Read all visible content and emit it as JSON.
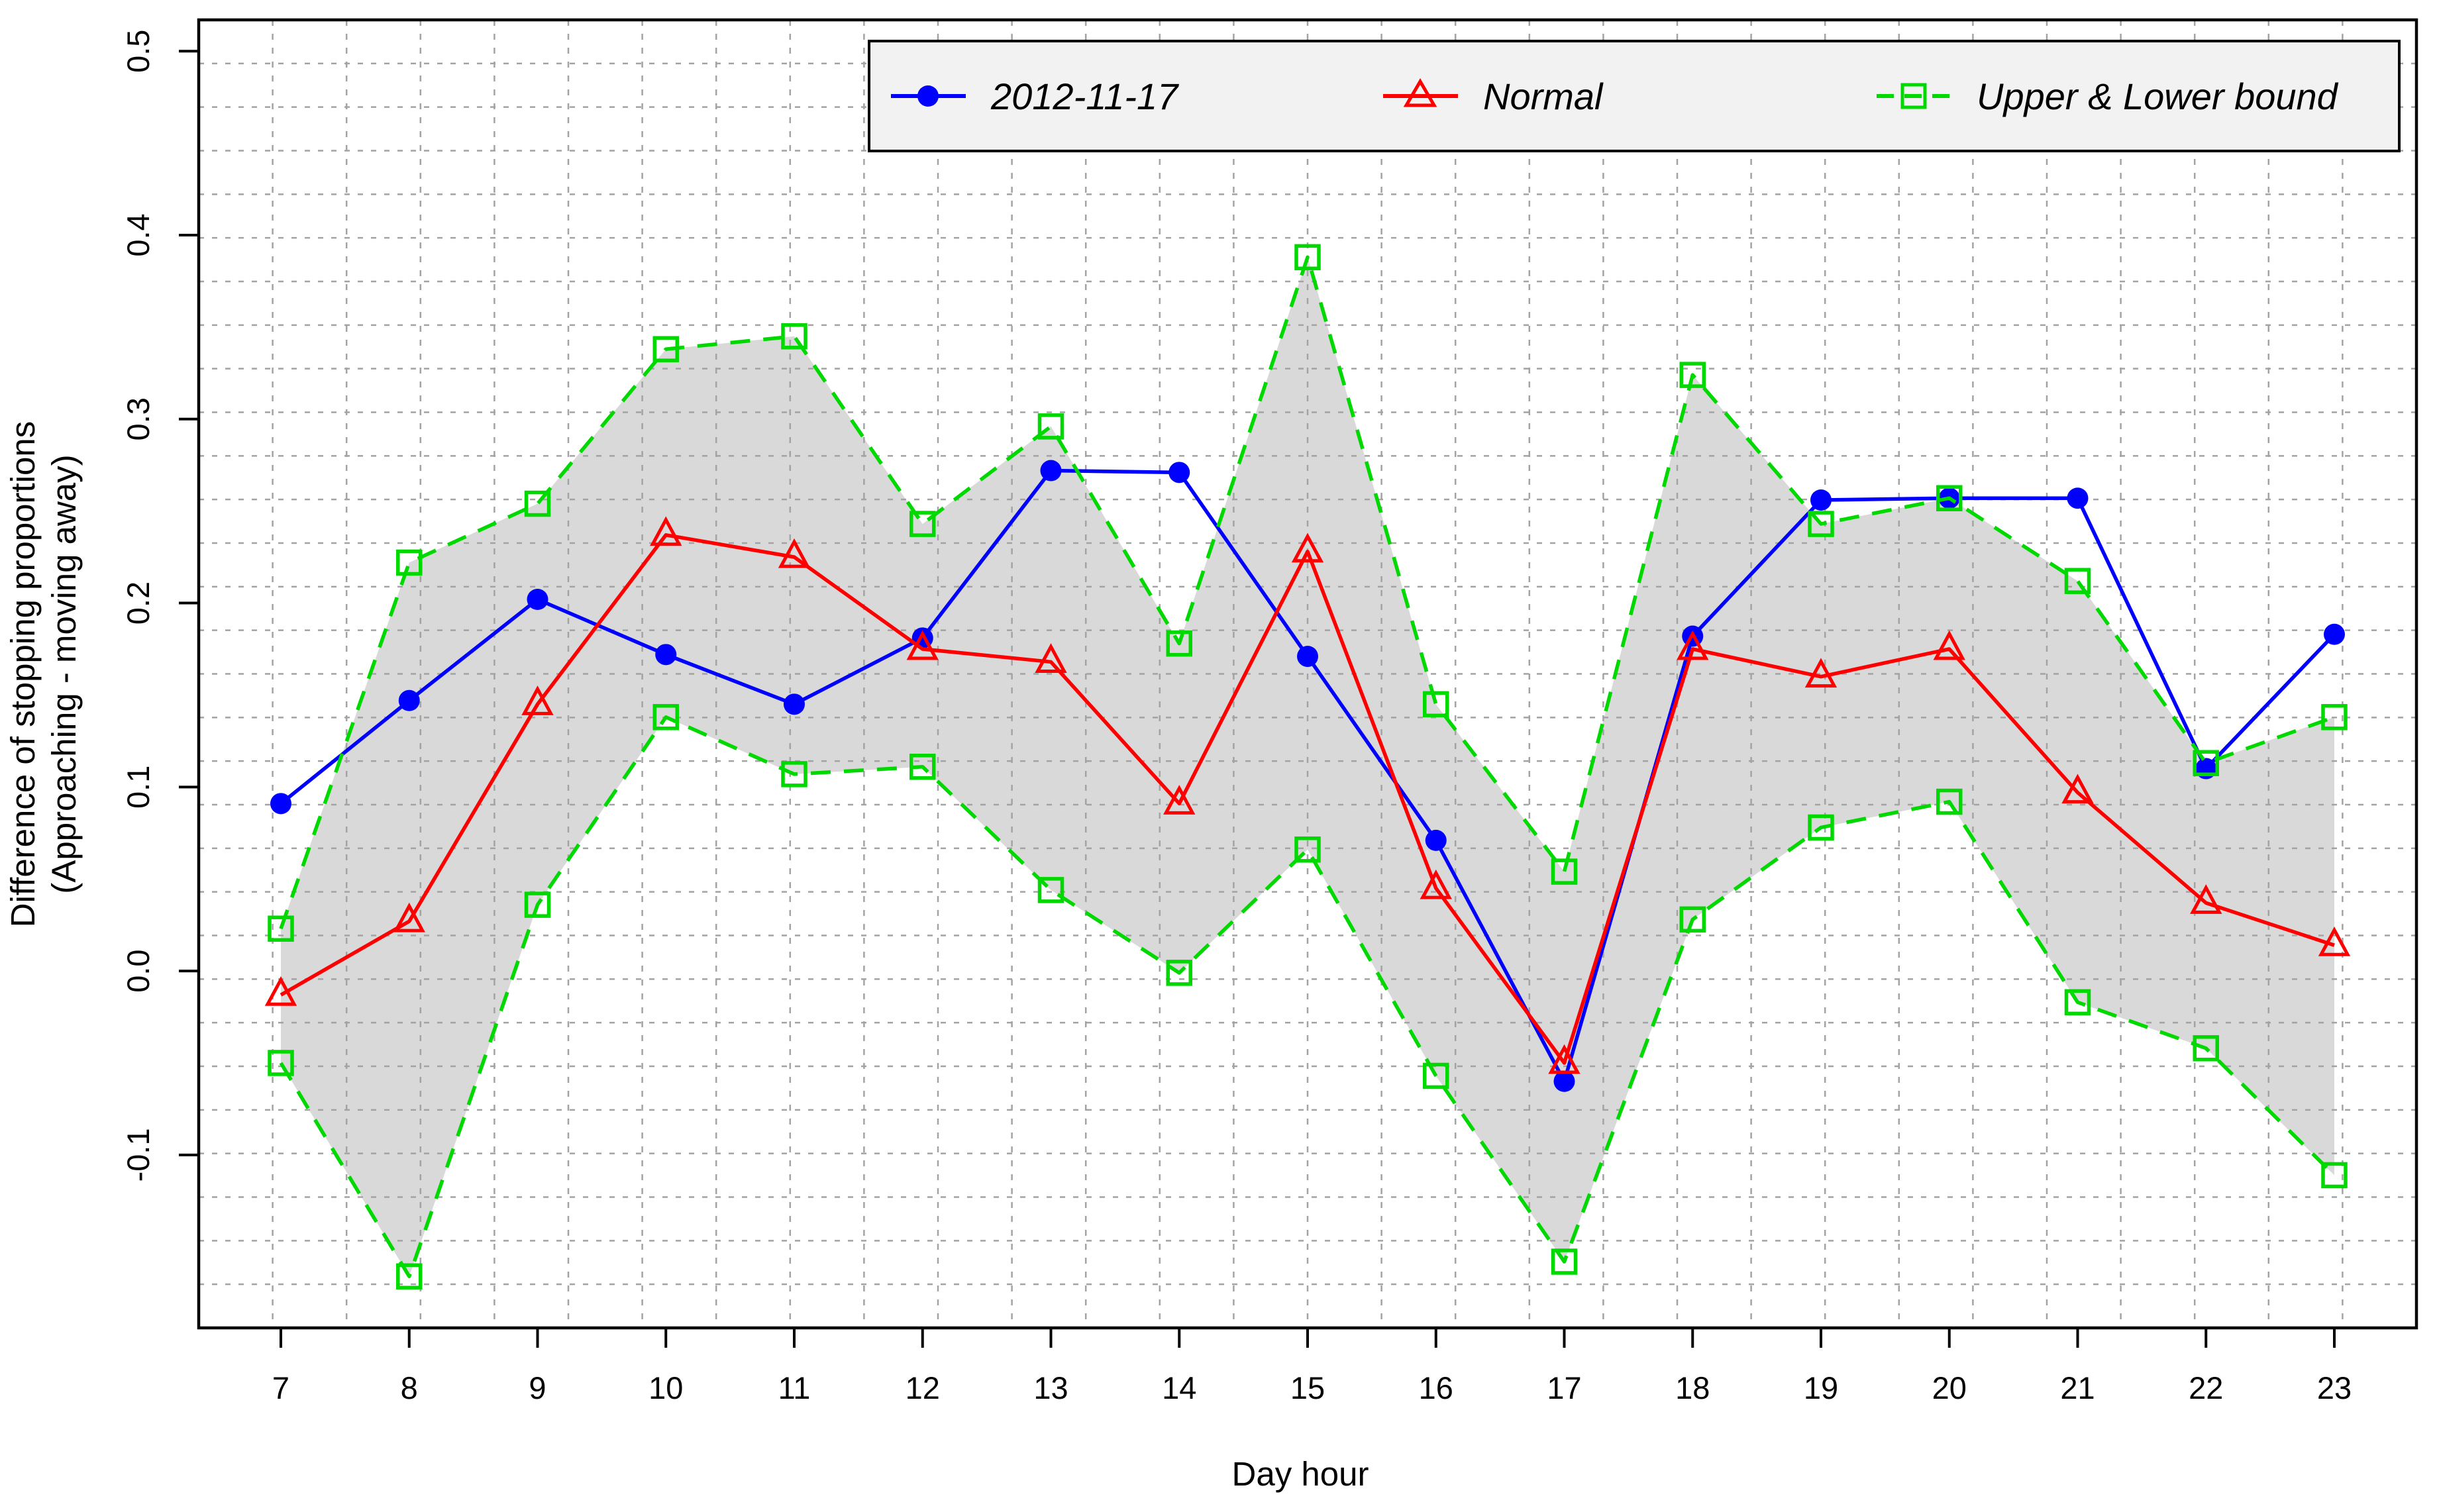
{
  "chart_data": {
    "type": "line",
    "title": "",
    "xlabel": "Day hour",
    "ylabel_line1": "Difference of stopping proportions",
    "ylabel_line2": "(Approaching - moving away)",
    "x": [
      7,
      8,
      9,
      10,
      11,
      12,
      13,
      14,
      15,
      16,
      17,
      18,
      19,
      20,
      21,
      22,
      23
    ],
    "x_tick_labels": [
      "7",
      "8",
      "9",
      "10",
      "11",
      "12",
      "13",
      "14",
      "15",
      "16",
      "17",
      "18",
      "19",
      "20",
      "21",
      "22",
      "23"
    ],
    "y_ticks": [
      -0.1,
      0.0,
      0.1,
      0.2,
      0.3,
      0.4,
      0.5
    ],
    "y_tick_labels": [
      "-0.1",
      "0.0",
      "0.1",
      "0.2",
      "0.3",
      "0.4",
      "0.5"
    ],
    "xlim": [
      6.36,
      23.64
    ],
    "ylim": [
      -0.194,
      0.517
    ],
    "grid": {
      "divisions_x": 30,
      "divisions_y": 30,
      "color": "#a3a3a3",
      "style": "dashed"
    },
    "legend_position": "top-right",
    "axis_color": "#000000",
    "background_color": "#ffffff",
    "series": [
      {
        "name": "2012-11-17",
        "color": "#0000ff",
        "marker": "filled-circle",
        "line_style": "solid",
        "values": [
          0.091,
          0.147,
          0.202,
          0.172,
          0.145,
          0.181,
          0.272,
          0.271,
          0.171,
          0.071,
          -0.06,
          0.182,
          0.256,
          0.257,
          0.257,
          0.11,
          0.183
        ]
      },
      {
        "name": "Normal",
        "color": "#ff0000",
        "marker": "open-triangle",
        "line_style": "solid",
        "values": [
          -0.013,
          0.027,
          0.145,
          0.237,
          0.225,
          0.175,
          0.168,
          0.091,
          0.228,
          0.045,
          -0.05,
          0.175,
          0.16,
          0.175,
          0.097,
          0.037,
          0.014
        ]
      },
      {
        "name": "Upper & Lower bound",
        "color": "#00d900",
        "marker": "open-square",
        "line_style": "dashed",
        "band_fill": "#d9d9d9",
        "values_upper": [
          0.023,
          0.222,
          0.254,
          0.338,
          0.345,
          0.243,
          0.296,
          0.178,
          0.388,
          0.145,
          0.054,
          0.324,
          0.243,
          0.257,
          0.212,
          0.113,
          0.138
        ],
        "values_lower": [
          -0.05,
          -0.166,
          0.036,
          0.138,
          0.107,
          0.111,
          0.044,
          -0.001,
          0.066,
          -0.057,
          -0.158,
          0.028,
          0.078,
          0.092,
          -0.017,
          -0.042,
          -0.111
        ]
      }
    ]
  }
}
